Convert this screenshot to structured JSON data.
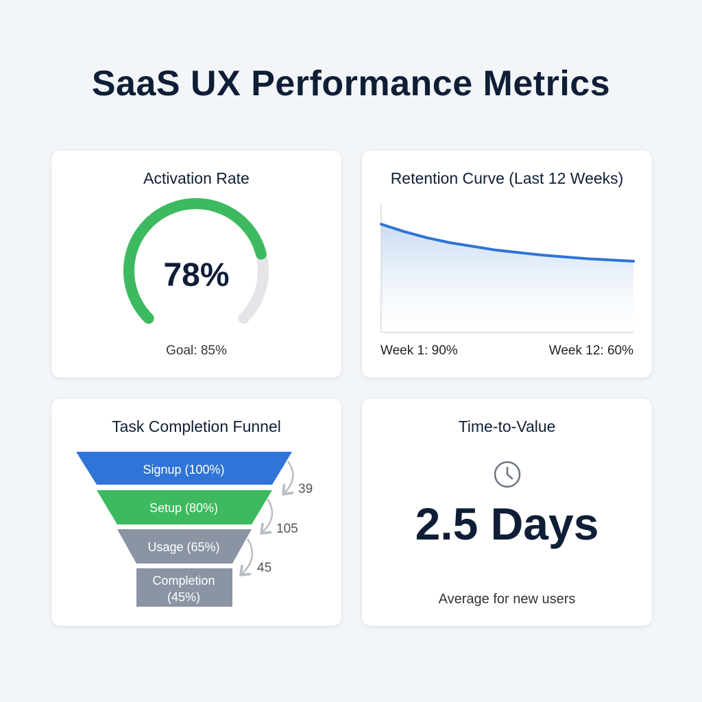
{
  "title": "SaaS UX Performance Metrics",
  "colors": {
    "green": "#3dba5f",
    "blue": "#2f74d6",
    "gray_track": "#e3e5e8",
    "funnel_gray": "#8a94a3",
    "background": "#f3f6f9"
  },
  "activation": {
    "title": "Activation Rate",
    "value_label": "78%",
    "value": 78,
    "goal_label": "Goal: 85%"
  },
  "retention": {
    "title": "Retention Curve (Last 12 Weeks)",
    "start_label": "Week 1: 90%",
    "end_label": "Week 12: 60%"
  },
  "funnel": {
    "title": "Task Completion Funnel"
  },
  "ttv": {
    "title": "Time-to-Value",
    "icon": "clock-icon",
    "value": "2.5 Days",
    "caption": "Average for new users"
  },
  "chart_data": [
    {
      "type": "gauge",
      "title": "Activation Rate",
      "value": 78,
      "max": 100,
      "goal": 85
    },
    {
      "type": "area",
      "title": "Retention Curve (Last 12 Weeks)",
      "x": [
        1,
        2,
        3,
        4,
        5,
        6,
        7,
        8,
        9,
        10,
        11,
        12
      ],
      "values": [
        90,
        84,
        79,
        75,
        72,
        69,
        67,
        65,
        63.5,
        62,
        61,
        60
      ],
      "ylim": [
        0,
        105
      ],
      "grid": false
    },
    {
      "type": "funnel",
      "title": "Task Completion Funnel",
      "stages": [
        {
          "label": "Signup (100%)",
          "value": 100
        },
        {
          "label": "Setup (80%)",
          "value": 80
        },
        {
          "label": "Usage (65%)",
          "value": 65
        },
        {
          "label": "Completion (45%)",
          "value": 45
        }
      ],
      "dropoffs": [
        "39",
        "105",
        "45"
      ]
    }
  ]
}
